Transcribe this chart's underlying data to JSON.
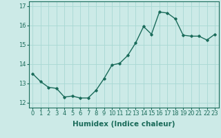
{
  "x": [
    0,
    1,
    2,
    3,
    4,
    5,
    6,
    7,
    8,
    9,
    10,
    11,
    12,
    13,
    14,
    15,
    16,
    17,
    18,
    19,
    20,
    21,
    22,
    23
  ],
  "y": [
    13.5,
    13.1,
    12.8,
    12.75,
    12.3,
    12.35,
    12.25,
    12.25,
    12.65,
    13.25,
    13.95,
    14.05,
    14.45,
    15.1,
    15.95,
    15.55,
    16.7,
    16.65,
    16.35,
    15.5,
    15.45,
    15.45,
    15.25,
    15.55
  ],
  "xlabel": "Humidex (Indice chaleur)",
  "xlim": [
    -0.5,
    23.5
  ],
  "ylim": [
    11.75,
    17.25
  ],
  "yticks": [
    12,
    13,
    14,
    15,
    16,
    17
  ],
  "xticks": [
    0,
    1,
    2,
    3,
    4,
    5,
    6,
    7,
    8,
    9,
    10,
    11,
    12,
    13,
    14,
    15,
    16,
    17,
    18,
    19,
    20,
    21,
    22,
    23
  ],
  "line_color": "#1a6b5a",
  "marker": "D",
  "marker_size": 1.8,
  "bg_color": "#cceae7",
  "grid_color": "#a8d8d3",
  "line_width": 1.0,
  "xlabel_fontsize": 7.5,
  "tick_fontsize": 6.0
}
